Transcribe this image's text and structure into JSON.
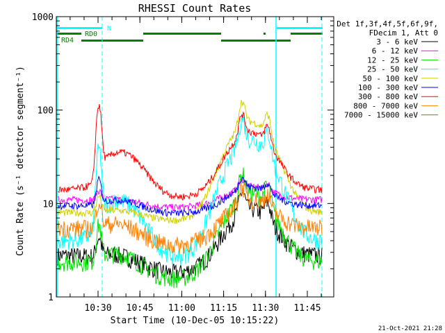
{
  "chart_data": {
    "type": "line",
    "title": "RHESSI Count Rates",
    "xlabel": "Start Time (10-Dec-05 10:15:22)",
    "ylabel": "Count Rate (s⁻¹ detector segment⁻¹)",
    "yscale": "log",
    "ylim": [
      1,
      1000
    ],
    "xlim_minutes": [
      0,
      40
    ],
    "x_ticks": [
      "10:30",
      "10:45",
      "11:00",
      "11:15",
      "11:30",
      "11:45"
    ],
    "y_ticks": [
      "1",
      "10",
      "100",
      "1000"
    ],
    "legend_header": [
      "Det 1f,3f,4f,5f,6f,9f,",
      "FDecim 1, Att 0"
    ],
    "legend_position": "right",
    "footer_timestamp": "21-Oct-2021 21:28",
    "flags": [
      {
        "label": "N",
        "color": "#00ffff"
      },
      {
        "label": "RD0",
        "color": "#008000"
      },
      {
        "label": "RD4",
        "color": "#008000"
      }
    ],
    "series": [
      {
        "name": "3 - 6 keV",
        "color": "#000000",
        "base": 2.8,
        "peak1": 4.5,
        "peak2": 14
      },
      {
        "name": "6 - 12 keV",
        "color": "#ff00ff",
        "base": 11,
        "peak1": 14,
        "peak2": 19
      },
      {
        "name": "12 - 25 keV",
        "color": "#00e000",
        "base": 2.4,
        "peak1": 6,
        "peak2": 22
      },
      {
        "name": "25 - 50 keV",
        "color": "#00ffff",
        "base": 4,
        "peak1": 38,
        "peak2": 85
      },
      {
        "name": "50 - 100 keV",
        "color": "#d0d000",
        "base": 8,
        "peak1": 12,
        "peak2": 130
      },
      {
        "name": "100 - 300 keV",
        "color": "#0000ff",
        "base": 9.5,
        "peak1": 18,
        "peak2": 20
      },
      {
        "name": "300 - 800 keV",
        "color": "#ff0000",
        "base": 14,
        "peak1": 110,
        "peak2": 95
      },
      {
        "name": "800 - 7000 keV",
        "color": "#ff8000",
        "base": 5.5,
        "peak1": 11,
        "peak2": 16
      },
      {
        "name": "7000 - 15000 keV",
        "color": "#808000",
        "base": 0,
        "peak1": 0,
        "peak2": 0
      }
    ]
  }
}
